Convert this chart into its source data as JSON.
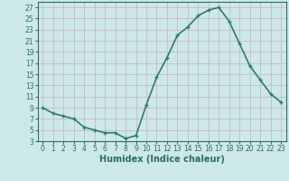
{
  "x": [
    0,
    1,
    2,
    3,
    4,
    5,
    6,
    7,
    8,
    9,
    10,
    11,
    12,
    13,
    14,
    15,
    16,
    17,
    18,
    19,
    20,
    21,
    22,
    23
  ],
  "y": [
    9,
    8,
    7.5,
    7,
    5.5,
    5,
    4.5,
    4.5,
    3.5,
    4,
    9.5,
    14.5,
    18,
    22,
    23.5,
    25.5,
    26.5,
    27,
    24.5,
    20.5,
    16.5,
    14,
    11.5,
    10
  ],
  "line_color": "#2d7d6e",
  "marker": "+",
  "marker_size": 3,
  "bg_color": "#cde8e8",
  "grid_color": "#b8d8d8",
  "xlabel": "Humidex (Indice chaleur)",
  "ylabel": "",
  "xlim": [
    -0.5,
    23.5
  ],
  "ylim": [
    3,
    28
  ],
  "yticks": [
    3,
    5,
    7,
    9,
    11,
    13,
    15,
    17,
    19,
    21,
    23,
    25,
    27
  ],
  "xticks": [
    0,
    1,
    2,
    3,
    4,
    5,
    6,
    7,
    8,
    9,
    10,
    11,
    12,
    13,
    14,
    15,
    16,
    17,
    18,
    19,
    20,
    21,
    22,
    23
  ],
  "font_color": "#2d6b6b",
  "linewidth": 1.2,
  "tick_fontsize": 5.5,
  "xlabel_fontsize": 7
}
